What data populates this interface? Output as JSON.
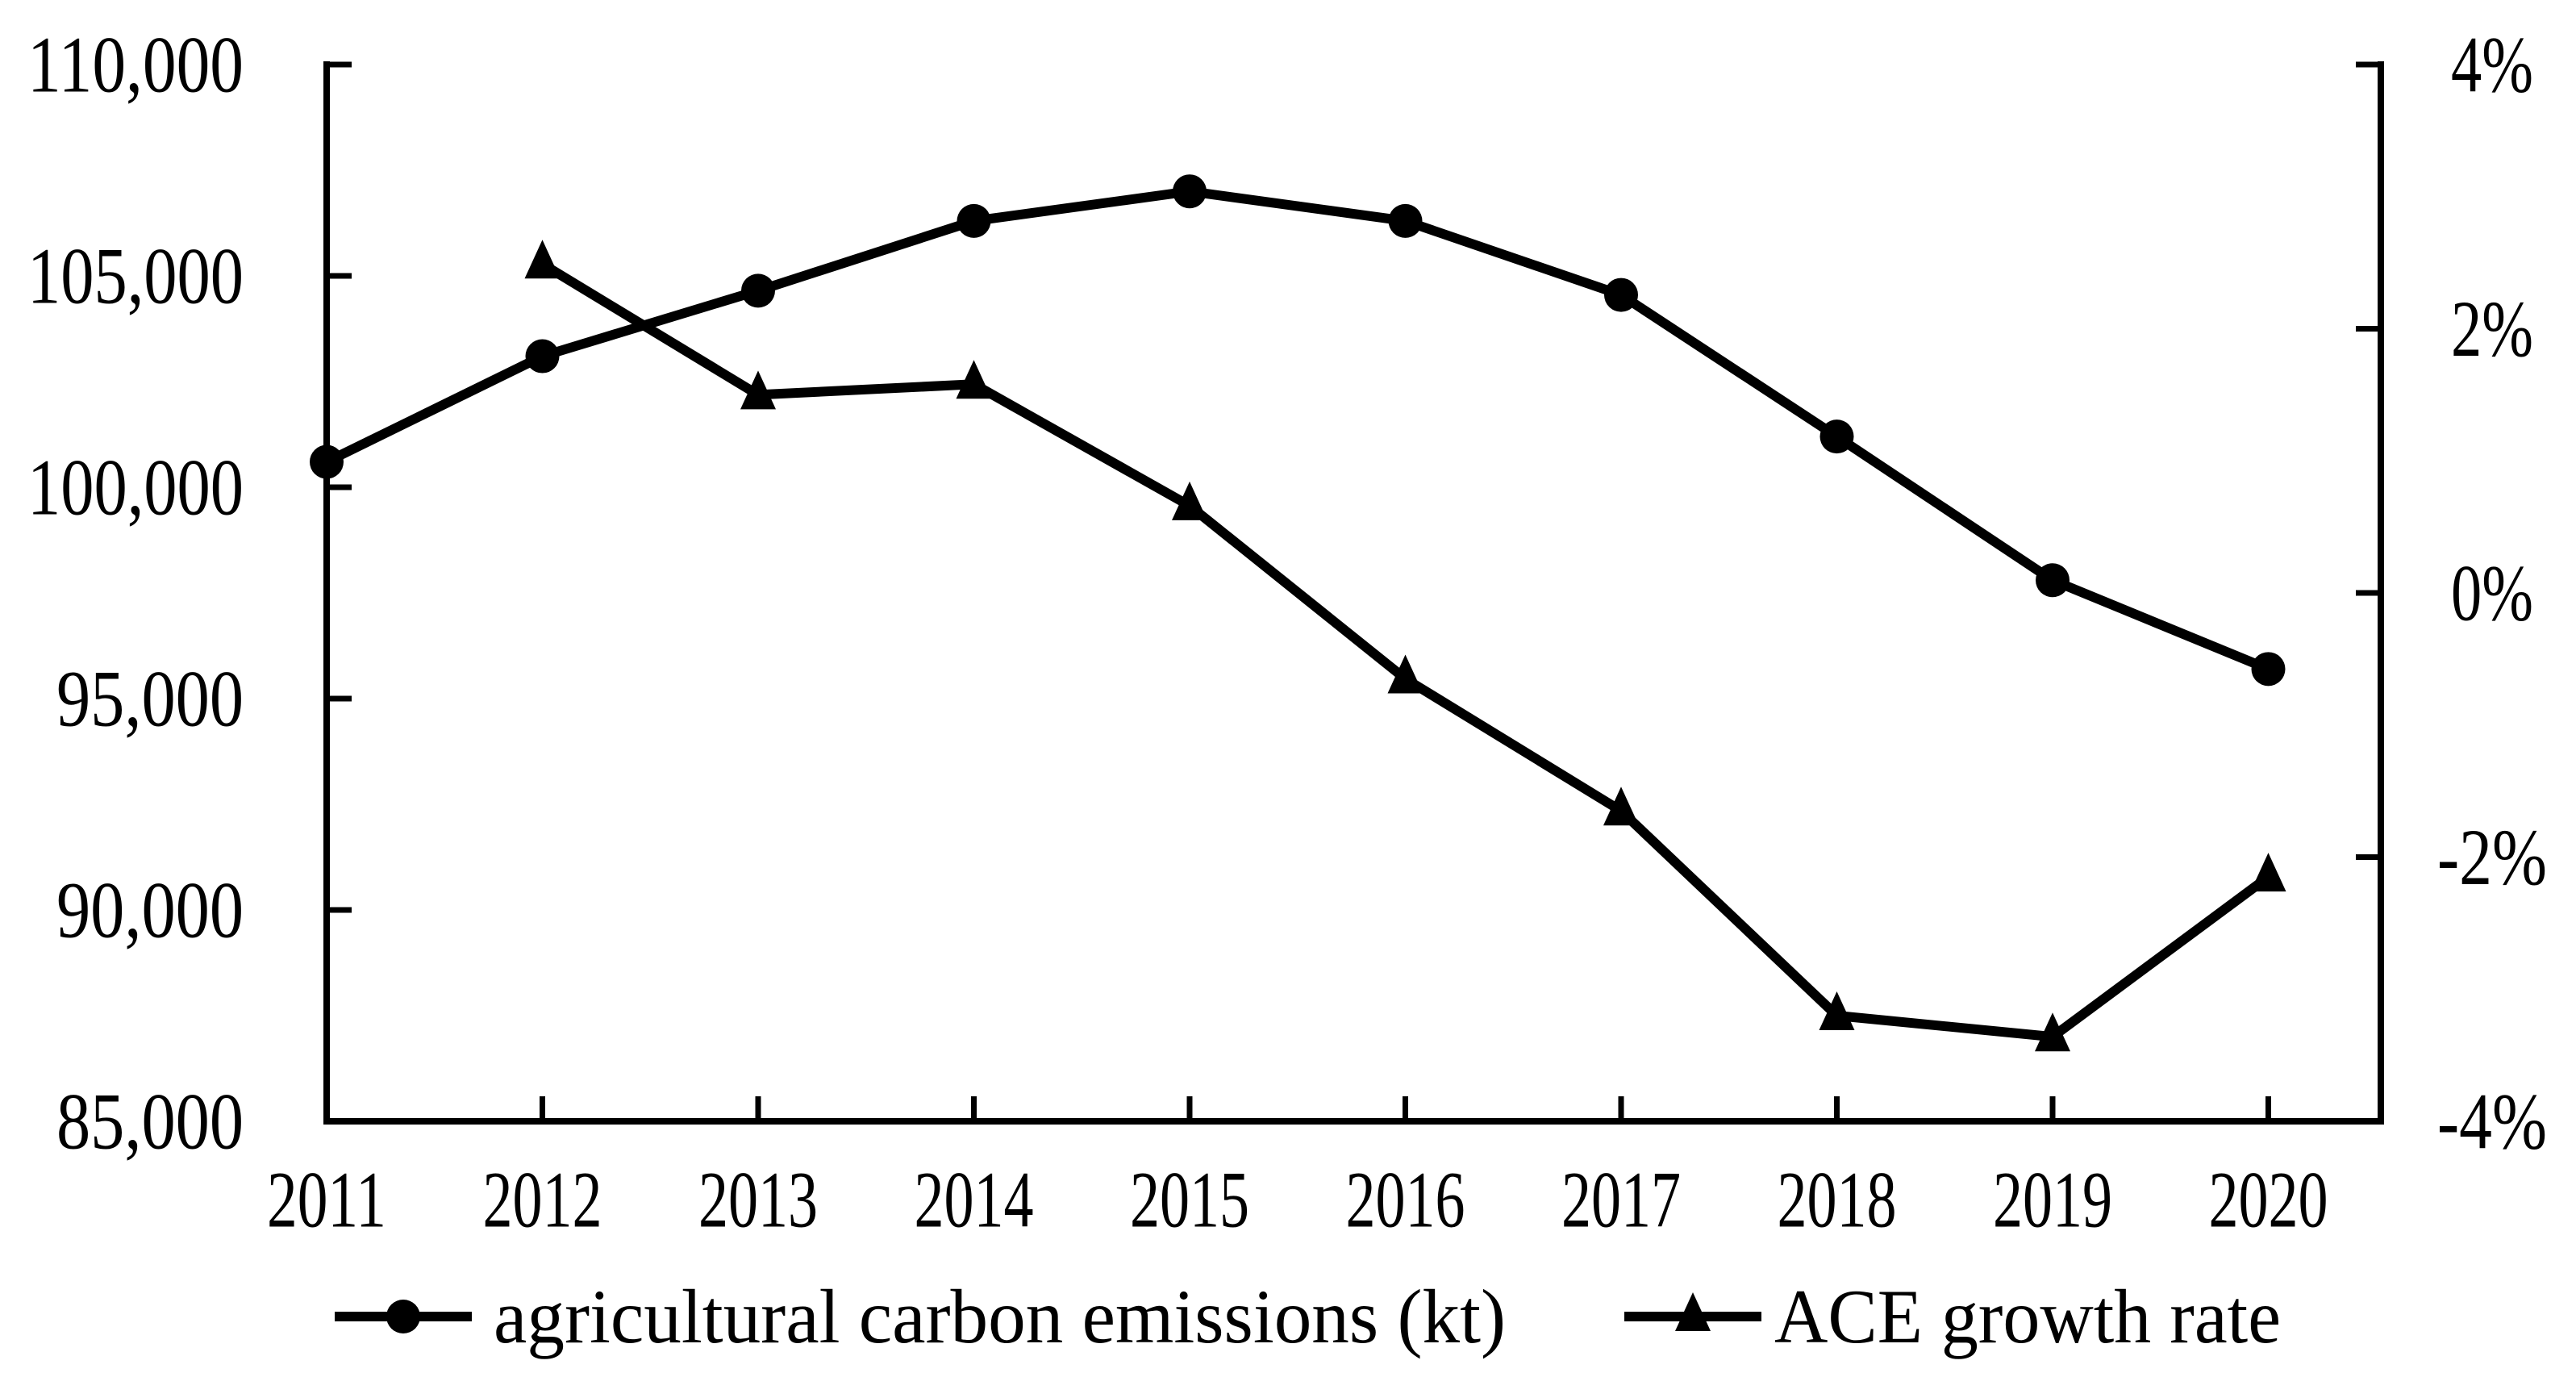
{
  "figure": {
    "background_color": "#ffffff",
    "ink_color": "#000000",
    "title": ""
  },
  "chart_data": {
    "type": "line",
    "x": [
      2011,
      2012,
      2013,
      2014,
      2015,
      2016,
      2017,
      2018,
      2019,
      2020
    ],
    "x_tick_labels": [
      "2011",
      "2012",
      "2013",
      "2014",
      "2015",
      "2016",
      "2017",
      "2018",
      "2019",
      "2020"
    ],
    "series": [
      {
        "name": "agricultural carbon emissions (kt)",
        "axis": "left",
        "marker": "circle",
        "values": [
          100600,
          103100,
          104650,
          106300,
          107000,
          106300,
          104550,
          101200,
          97800,
          95700
        ]
      },
      {
        "name": "ACE growth rate",
        "axis": "right",
        "marker": "triangle",
        "values": [
          null,
          2.49,
          1.5,
          1.58,
          0.66,
          -0.65,
          -1.65,
          -3.2,
          -3.36,
          -2.15
        ]
      }
    ],
    "left_axis": {
      "min": 85000,
      "max": 110000,
      "tick_step": 5000,
      "tick_labels": [
        "110,000",
        "105,000",
        "100,000",
        "95,000",
        "90,000",
        "85,000"
      ]
    },
    "right_axis": {
      "min": -4,
      "max": 4,
      "tick_step": 2,
      "tick_labels": [
        "4%",
        "2%",
        "0%",
        "-2%",
        "-4%"
      ],
      "unit": "%"
    },
    "grid": false,
    "legend": {
      "position": "bottom",
      "entries": [
        {
          "label": "agricultural carbon emissions (kt)",
          "marker": "circle"
        },
        {
          "label": "ACE growth rate",
          "marker": "triangle"
        }
      ]
    }
  }
}
